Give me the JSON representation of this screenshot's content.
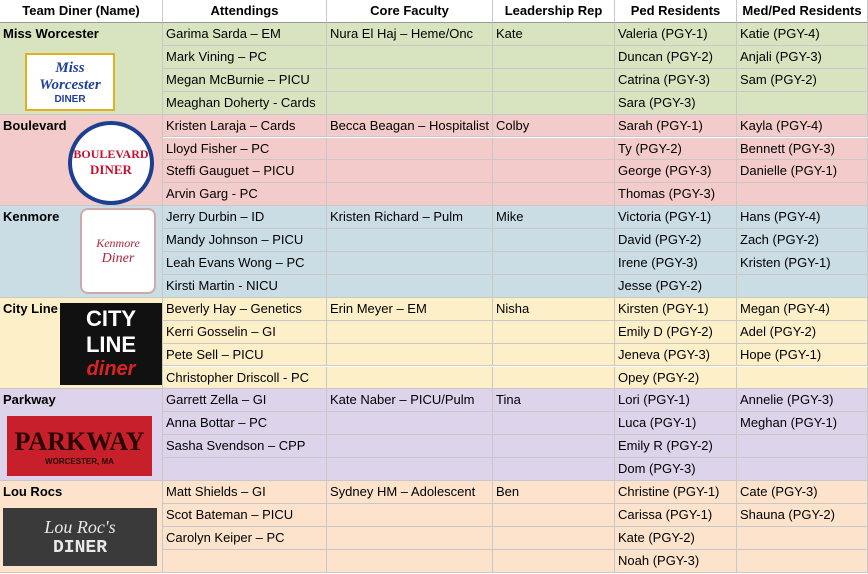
{
  "header": [
    "Team Diner (Name)",
    "Attendings",
    "Core Faculty",
    "Leadership Rep",
    "Ped Residents",
    "Med/Ped Residents"
  ],
  "teams": [
    {
      "name": "Miss Worcester",
      "color": "#d8e4bf",
      "logo": [
        "Miss Worcester",
        "DINER"
      ],
      "rows": [
        [
          "Garima Sarda – EM",
          "Nura El Haj – Heme/Onc",
          "Kate",
          "Valeria (PGY-1)",
          "Katie (PGY-4)"
        ],
        [
          "Mark Vining – PC",
          null,
          null,
          "Duncan (PGY-2)",
          "Anjali (PGY-3)"
        ],
        [
          "Megan McBurnie – PICU",
          null,
          null,
          "Catrina (PGY-3)",
          "Sam (PGY-2)"
        ],
        [
          "Meaghan Doherty - Cards",
          null,
          null,
          "Sara (PGY-3)",
          null
        ]
      ]
    },
    {
      "name": "Boulevard",
      "color": "#f4cbcb",
      "logo": [
        "BOULEVARD",
        "DINER"
      ],
      "rows": [
        [
          "Kristen Laraja – Cards",
          "Becca Beagan – Hospitalist",
          "Colby",
          "Sarah (PGY-1)",
          "Kayla (PGY-4)"
        ],
        [
          "Lloyd Fisher – PC",
          null,
          null,
          "Ty (PGY-2)",
          "Bennett (PGY-3)"
        ],
        [
          "Steffi Gauguet – PICU",
          null,
          null,
          "George (PGY-3)",
          "Danielle (PGY-1)"
        ],
        [
          "Arvin Garg - PC",
          null,
          null,
          "Thomas (PGY-3)",
          null
        ]
      ]
    },
    {
      "name": "Kenmore",
      "color": "#cadde4",
      "logo": [
        "Kenmore",
        "Diner"
      ],
      "rows": [
        [
          "Jerry Durbin – ID",
          "Kristen Richard – Pulm",
          "Mike",
          "Victoria (PGY-1)",
          "Hans (PGY-4)"
        ],
        [
          "Mandy Johnson – PICU",
          null,
          null,
          "David (PGY-2)",
          "Zach (PGY-2)"
        ],
        [
          "Leah Evans Wong – PC",
          null,
          null,
          "Irene (PGY-3)",
          "Kristen (PGY-1)"
        ],
        [
          "Kirsti Martin - NICU",
          null,
          null,
          "Jesse (PGY-2)",
          null
        ]
      ]
    },
    {
      "name": "City Line",
      "color": "#fdf0c9",
      "logo": [
        "CITY LINE",
        "diner"
      ],
      "rows": [
        [
          "Beverly Hay – Genetics",
          "Erin Meyer – EM",
          "Nisha",
          "Kirsten (PGY-1)",
          "Megan (PGY-4)"
        ],
        [
          "Kerri Gosselin – GI",
          null,
          null,
          "Emily D (PGY-2)",
          "Adel (PGY-2)"
        ],
        [
          "Pete Sell – PICU",
          null,
          null,
          "Jeneva (PGY-3)",
          "Hope (PGY-1)"
        ],
        [
          "Christopher Driscoll - PC",
          null,
          null,
          "Opey (PGY-2)",
          null
        ]
      ]
    },
    {
      "name": "Parkway",
      "color": "#ddd4eb",
      "logo": [
        "PARKWAY",
        "WORCESTER, MA"
      ],
      "rows": [
        [
          "Garrett Zella – GI",
          "Kate Naber – PICU/Pulm",
          "Tina",
          "Lori (PGY-1)",
          "Annelie (PGY-3)"
        ],
        [
          "Anna Bottar – PC",
          null,
          null,
          "Luca (PGY-1)",
          "Meghan (PGY-1)"
        ],
        [
          "Sasha Svendson – CPP",
          null,
          null,
          "Emily R (PGY-2)",
          null
        ],
        [
          null,
          null,
          null,
          "Dom (PGY-3)",
          null
        ]
      ]
    },
    {
      "name": "Lou Rocs",
      "color": "#fde3cb",
      "logo": [
        "Lou Roc's",
        "DINER"
      ],
      "rows": [
        [
          "Matt Shields – GI",
          "Sydney HM – Adolescent",
          "Ben",
          "Christine (PGY-1)",
          "Cate (PGY-3)"
        ],
        [
          "Scot Bateman – PICU",
          null,
          null,
          "Carissa (PGY-1)",
          "Shauna (PGY-2)"
        ],
        [
          "Carolyn Keiper – PC",
          null,
          null,
          "Kate (PGY-2)",
          null
        ],
        [
          null,
          null,
          null,
          "Noah (PGY-3)",
          null
        ]
      ]
    }
  ]
}
